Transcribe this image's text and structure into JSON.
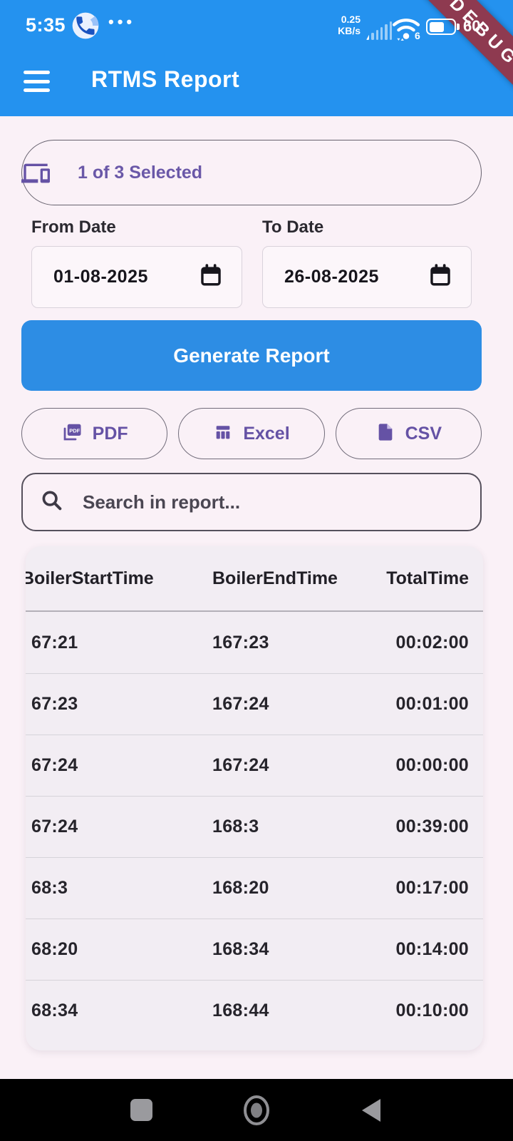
{
  "status_bar": {
    "time": "5:35",
    "menu_dots": "•••",
    "net_speed_line1": "0.25",
    "net_speed_line2": "KB/s",
    "wifi6_label": "6",
    "battery_percent": "60",
    "debug_label": "DEBUG"
  },
  "app_bar": {
    "title": "RTMS Report"
  },
  "filters": {
    "device_selector_label": "1 of 3 Selected",
    "from_date_label": "From Date",
    "from_date_value": "01-08-2025",
    "to_date_label": "To Date",
    "to_date_value": "26-08-2025"
  },
  "actions": {
    "generate_label": "Generate Report",
    "export_buttons": [
      {
        "label": "PDF"
      },
      {
        "label": "Excel"
      },
      {
        "label": "CSV"
      }
    ]
  },
  "search": {
    "placeholder": "Search in report..."
  },
  "report_table": {
    "columns": [
      "BoilerStartTime",
      "BoilerEndTime",
      "TotalTime"
    ],
    "rows": [
      [
        "67:21",
        "167:23",
        "00:02:00"
      ],
      [
        "67:23",
        "167:24",
        "00:01:00"
      ],
      [
        "67:24",
        "167:24",
        "00:00:00"
      ],
      [
        "67:24",
        "168:3",
        "00:39:00"
      ],
      [
        "68:3",
        "168:20",
        "00:17:00"
      ],
      [
        "68:20",
        "168:34",
        "00:14:00"
      ],
      [
        "68:34",
        "168:44",
        "00:10:00"
      ]
    ]
  },
  "colors": {
    "app_bar_blue": "#2492EF",
    "button_blue": "#2D8DE4",
    "accent_purple": "#6552A5",
    "debug_maroon": "#8E3A50",
    "page_bg": "#FAF1F7",
    "card_bg": "#F2EDF3"
  }
}
